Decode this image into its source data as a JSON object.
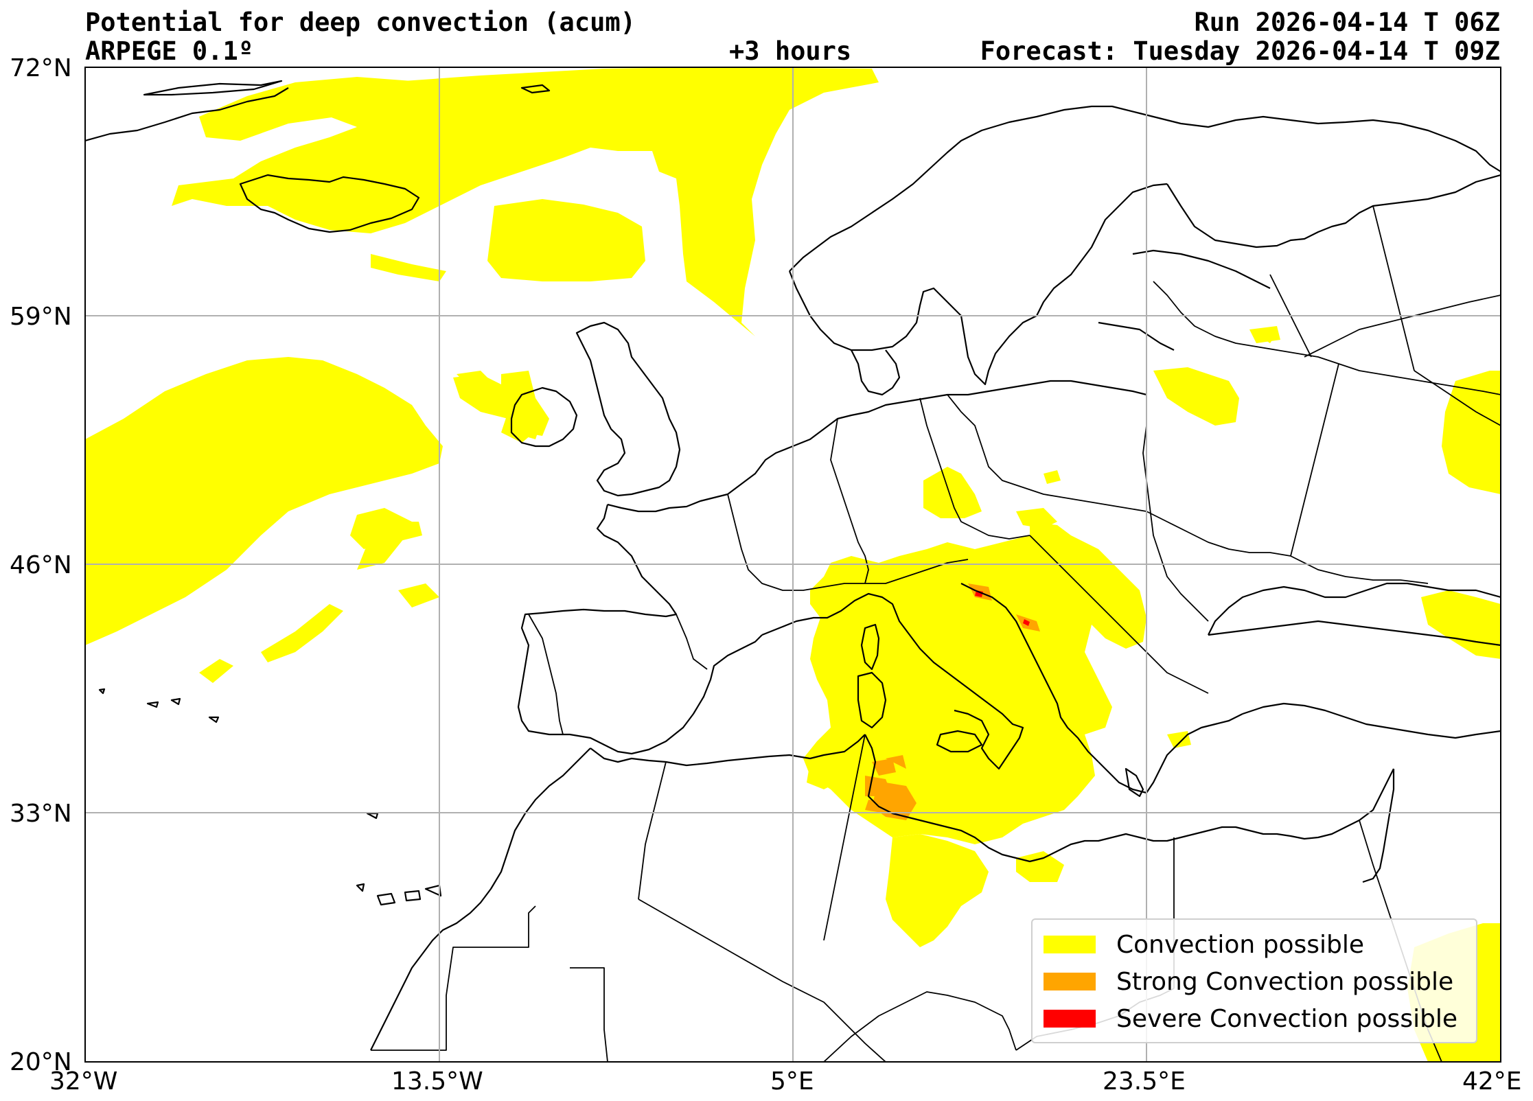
{
  "header": {
    "title": "Potential for deep convection (acum)",
    "model": "ARPEGE 0.1º",
    "lead_time": "+3 hours",
    "run": "Run 2026-04-14 T 06Z",
    "forecast": "Forecast: Tuesday 2026-04-14 T 09Z"
  },
  "axes": {
    "lat_ticks": [
      "72°N",
      "59°N",
      "46°N",
      "33°N",
      "20°N"
    ],
    "lon_ticks": [
      "32°W",
      "13.5°W",
      "5°E",
      "23.5°E",
      "42°E"
    ]
  },
  "legend": {
    "items": [
      {
        "label": "Convection possible",
        "color": "#ffff00"
      },
      {
        "label": "Strong Convection possible",
        "color": "#ffa500"
      },
      {
        "label": "Severe Convection possible",
        "color": "#ff0000"
      }
    ]
  },
  "colors": {
    "convection": "#ffff00",
    "strong": "#ffa500",
    "severe": "#ff0000",
    "grid": "#b0b0b0",
    "coast": "#000000"
  }
}
